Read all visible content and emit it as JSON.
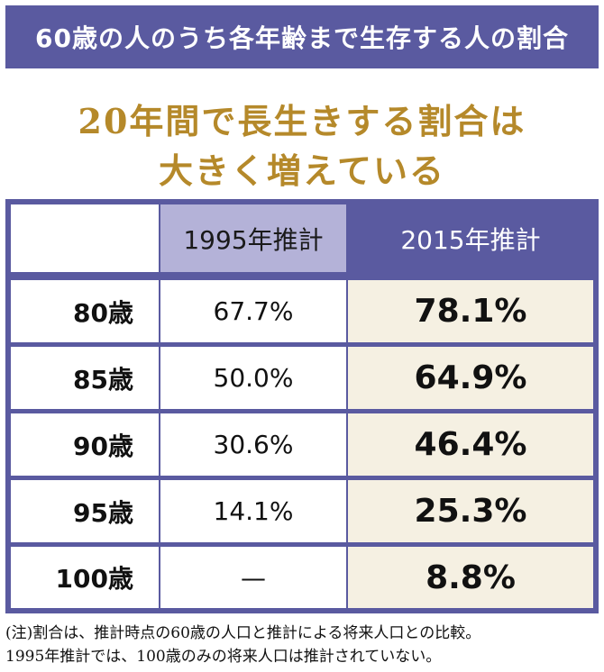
{
  "header": {
    "title": "60歳の人のうち各年齢まで生存する人の割合"
  },
  "headline": {
    "line1": "20年間で長生きする割合は",
    "line2": "大きく増えている"
  },
  "chart_data": {
    "type": "table",
    "columns": [
      "",
      "1995年推計",
      "2015年推計"
    ],
    "rows": [
      {
        "age": "80歳",
        "est1995": "67.7%",
        "est2015": "78.1%"
      },
      {
        "age": "85歳",
        "est1995": "50.0%",
        "est2015": "64.9%"
      },
      {
        "age": "90歳",
        "est1995": "30.6%",
        "est2015": "46.4%"
      },
      {
        "age": "95歳",
        "est1995": "14.1%",
        "est2015": "25.3%"
      },
      {
        "age": "100歳",
        "est1995": "—",
        "est2015": "8.8%"
      }
    ]
  },
  "notes": {
    "line1": "(注)割合は、推計時点の60歳の人口と推計による将来人口との比較。",
    "line2": "1995年推計では、100歳のみの将来人口は推計されていない。"
  },
  "colors": {
    "header_bg": "#5a5aa0",
    "headline": "#b5892a",
    "col1995_header": "#b4b2d8",
    "col2015_cells": "#f5f0e2"
  }
}
